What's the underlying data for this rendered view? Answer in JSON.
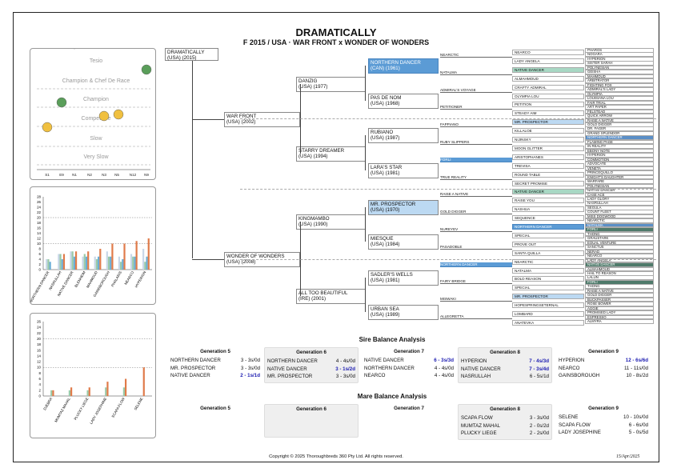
{
  "header": {
    "title": "DRAMATICALLY",
    "subtitle": "F 2015 / USA · WAR FRONT x WONDER OF WONDERS"
  },
  "tree": {
    "g1": {
      "name": "DRAMATICALLY",
      "sub": "(USA) (2015)"
    },
    "g2": [
      {
        "name": "WAR FRONT",
        "sub": "(USA) (2002)"
      },
      {
        "name": "WONDER OF WONDERS",
        "sub": "(USA) (2008)"
      }
    ],
    "g3": [
      {
        "name": "DANZIG",
        "sub": "(USA) (1977)"
      },
      {
        "name": "STARRY DREAMER",
        "sub": "(USA) (1994)"
      },
      {
        "name": "KINGMAMBO",
        "sub": "(USA) (1990)"
      },
      {
        "name": "ALL TOO BEAUTIFUL",
        "sub": "(IRE) (2001)"
      }
    ],
    "g4": [
      {
        "name": "NORTHERN DANCER",
        "sub": "(CAN) (1961)",
        "hl": "blue"
      },
      {
        "name": "PAS DE NOM",
        "sub": "(USA) (1968)"
      },
      {
        "name": "RUBIANO",
        "sub": "(USA) (1987)"
      },
      {
        "name": "LARA'S STAR",
        "sub": "(USA) (1981)"
      },
      {
        "name": "MR. PROSPECTOR",
        "sub": "(USA) (1970)",
        "hl": "lblue"
      },
      {
        "name": "MIESQUE",
        "sub": "(USA) (1984)"
      },
      {
        "name": "SADLER'S WELLS",
        "sub": "(USA) (1981)"
      },
      {
        "name": "URBAN SEA",
        "sub": "(USA) (1989)"
      }
    ],
    "g5": [
      {
        "name": "NEARCTIC"
      },
      {
        "name": "NATALMA"
      },
      {
        "name": "ADMIRAL'S VOYAGE"
      },
      {
        "name": "PETITIONER"
      },
      {
        "name": "FAPPIANO"
      },
      {
        "name": "RUBY SLIPPERS"
      },
      {
        "name": "FORLI",
        "hl": "blue"
      },
      {
        "name": "TRUE REALITY"
      },
      {
        "name": "RAISE A NATIVE"
      },
      {
        "name": "GOLD DIGGER"
      },
      {
        "name": "NUREYEV"
      },
      {
        "name": "PASADOBLE"
      },
      {
        "name": "NORTHERN DANCER",
        "hl": "blue"
      },
      {
        "name": "FAIRY BRIDGE"
      },
      {
        "name": "MISWAKI"
      },
      {
        "name": "ALLEGRETTA"
      }
    ],
    "g6": [
      {
        "name": "NEARCO"
      },
      {
        "name": "LADY ANGELA"
      },
      {
        "name": "NATIVE DANCER",
        "hl": "green"
      },
      {
        "name": "ALMAHMOUD"
      },
      {
        "name": "CRAFTY ADMIRAL"
      },
      {
        "name": "OLYMPIA LOU"
      },
      {
        "name": "PETITION"
      },
      {
        "name": "STEADY AIM"
      },
      {
        "name": "MR. PROSPECTOR",
        "hl": "lblue"
      },
      {
        "name": "KILLALOE"
      },
      {
        "name": "NIJINSKY"
      },
      {
        "name": "MOON GLITTER"
      },
      {
        "name": "ARISTOPHANES"
      },
      {
        "name": "TREVISA"
      },
      {
        "name": "ROUND TABLE"
      },
      {
        "name": "SECRET PROMISE"
      },
      {
        "name": "NATIVE DANCER",
        "hl": "green"
      },
      {
        "name": "RAISE YOU"
      },
      {
        "name": "NASHUA"
      },
      {
        "name": "SEQUENCE"
      },
      {
        "name": "NORTHERN DANCER",
        "hl": "blue"
      },
      {
        "name": "SPECIAL"
      },
      {
        "name": "PROVE OUT"
      },
      {
        "name": "SANTA QUILLA"
      },
      {
        "name": "NEARCTIC"
      },
      {
        "name": "NATALMA"
      },
      {
        "name": "BOLD REASON"
      },
      {
        "name": "SPECIAL"
      },
      {
        "name": "MR. PROSPECTOR",
        "hl": "lblue"
      },
      {
        "name": "HOPESPRINGSETERNAL"
      },
      {
        "name": "LOMBARD"
      },
      {
        "name": "ANATEVKA"
      }
    ],
    "g7": [
      "PHAROS",
      "NOGARA",
      "HYPERION",
      "SISTER SARAH",
      "POLYNESIAN",
      "GEISHA",
      "MAHMOUD",
      "ARBITRATOR",
      "FIGHTING FOX",
      "ADMIRAL'S LADY",
      "OLYMPIA",
      "LOUISIANA LOU",
      "FAIR TRIAL",
      "ART PAPER",
      "FELSTEAD",
      "QUICK ARROW",
      "RAISE A NATIVE",
      "GOLD DIGGER",
      "DR. FAGER",
      "GRAND SPLENDOR",
      "NORTHERN DANCER",
      "FLAMING PAGE",
      "IN REALITY",
      "EBONY NOTE",
      "HYPERION",
      "COMMOTION",
      "ADVOCATE",
      "VENETA",
      "PRINCEQUILLO",
      "KNIGHT'S DAUGHTER",
      "WARFARE",
      "POLYNESIAN",
      "NATIVE DANCER",
      "CASE ACE",
      "LADY GLORY",
      "NASRULLAH",
      "SEGULA",
      "COUNT FLEET",
      "MISS DOGWOOD",
      "NEARCTIC",
      "NATALMA",
      "FORLI",
      "THONG",
      "GRAUSTARK",
      "EQUAL VENTURE",
      "SANCTUS",
      "NERAD",
      "NEARCO",
      "LADY ANGELA",
      "NATIVE DANCER",
      "ALMAHMOUD",
      "HAIL TO REASON",
      "LALUN",
      "FORLI",
      "THONG",
      "RAISE A NATIVE",
      "GOLD DIGGER",
      "BUCKPASSER",
      "ROSE BOWER",
      "AGGIE",
      "PROMISED LADY",
      "ESPRESSO",
      "ALMYRA"
    ],
    "g7_hl": {
      "20": "dblue",
      "40": "dblue",
      "41": "dgreen",
      "49": "dgreen",
      "53": "dgreen"
    }
  },
  "speed_panel": {
    "labels": [
      "Tesio",
      "Champion & Chef De Race",
      "Champion",
      "Competitive",
      "Slow",
      "Very Slow"
    ],
    "x_labels": [
      "S1",
      "E9",
      "N1",
      "N2",
      "N3",
      "N5",
      "N12",
      "N9"
    ]
  },
  "sire_chart": {
    "type": "bar",
    "categories": [
      "NORTHERN DANCER",
      "NASRULLAH",
      "NATIVE DANCER",
      "BLENHEIM",
      "MAHMOUD",
      "GAINSBOROUGH",
      "PHALARIS",
      "NEARCO",
      "HYPERION"
    ],
    "series": [
      {
        "values": [
          4,
          6,
          7,
          5,
          5,
          7,
          5,
          6,
          8
        ],
        "color": "#c8d7e8"
      },
      {
        "values": [
          4,
          6,
          7,
          6,
          4,
          5,
          3,
          5,
          3
        ],
        "color": "#9bcaa8"
      },
      {
        "values": [
          3,
          4,
          5,
          5,
          5,
          5,
          4,
          5,
          5
        ],
        "color": "#6aaed6"
      },
      {
        "values": [
          0,
          6,
          7,
          7,
          8,
          10,
          10,
          11,
          12
        ],
        "color": "#e07b4a"
      }
    ],
    "y_ticks": [
      "0",
      "2",
      "4",
      "6",
      "8",
      "10",
      "12",
      "14",
      "16",
      "18",
      "20",
      "22",
      "24",
      "26",
      "28"
    ],
    "ylim": [
      0,
      28
    ]
  },
  "mare_chart": {
    "type": "bar",
    "categories": [
      "DJEBRA",
      "MUMTAZ MAHAL",
      "PLUCKY LIEGE",
      "LADY JOSEPHINE",
      "SCAPA FLOW",
      "SELENE"
    ],
    "series": [
      {
        "values": [
          2,
          2,
          2,
          3,
          3,
          0
        ],
        "color": "#9bcaa8"
      },
      {
        "values": [
          2,
          3,
          3,
          5,
          6,
          10
        ],
        "color": "#e07b4a"
      }
    ],
    "y_ticks": [
      "0",
      "2",
      "4",
      "6",
      "8",
      "10",
      "12",
      "14",
      "16",
      "18",
      "20",
      "22",
      "24",
      "26"
    ],
    "ylim": [
      0,
      26
    ]
  },
  "sire_balance": {
    "title": "Sire Balance Analysis",
    "gens": [
      {
        "label": "Generation 5",
        "rows": [
          [
            "NORTHERN DANCER",
            "3 - 3s/0d",
            false
          ],
          [
            "MR. PROSPECTOR",
            "3 - 3s/0d",
            false
          ],
          [
            "NATIVE DANCER",
            "2 - 1s/1d",
            true
          ]
        ]
      },
      {
        "label": "Generation 6",
        "rows": [
          [
            "NORTHERN DANCER",
            "4 - 4s/0d",
            false
          ],
          [
            "NATIVE DANCER",
            "3 - 1s/2d",
            true
          ],
          [
            "MR. PROSPECTOR",
            "3 - 3s/0d",
            false
          ]
        ]
      },
      {
        "label": "Generation 7",
        "rows": [
          [
            "NATIVE DANCER",
            "6 - 3s/3d",
            true
          ],
          [
            "NORTHERN DANCER",
            "4 - 4s/0d",
            false
          ],
          [
            "NEARCO",
            "4 - 4s/0d",
            false
          ]
        ]
      },
      {
        "label": "Generation 8",
        "rows": [
          [
            "HYPERION",
            "7 - 4s/3d",
            true
          ],
          [
            "NATIVE DANCER",
            "7 - 3s/4d",
            true
          ],
          [
            "NASRULLAH",
            "6 - 5s/1d",
            false
          ]
        ]
      },
      {
        "label": "Generation 9",
        "rows": [
          [
            "HYPERION",
            "12 - 6s/6d",
            true
          ],
          [
            "NEARCO",
            "11 - 11s/0d",
            false
          ],
          [
            "GAINSBOROUGH",
            "10 - 8s/2d",
            false
          ]
        ]
      }
    ]
  },
  "mare_balance": {
    "title": "Mare Balance Analysis",
    "gens": [
      {
        "label": "Generation 5",
        "rows": []
      },
      {
        "label": "Generation 6",
        "rows": []
      },
      {
        "label": "Generation 7",
        "rows": []
      },
      {
        "label": "Generation 8",
        "rows": [
          [
            "SCAPA FLOW",
            "3 - 3s/0d",
            false
          ],
          [
            "MUMTAZ MAHAL",
            "2 - 0s/2d",
            false
          ],
          [
            "PLUCKY LIEGE",
            "2 - 2s/0d",
            false
          ]
        ]
      },
      {
        "label": "Generation 9",
        "rows": [
          [
            "SELENE",
            "10 - 10s/0d",
            false
          ],
          [
            "SCAPA FLOW",
            "6 - 6s/0d",
            false
          ],
          [
            "LADY JOSEPHINE",
            "5 - 0s/5d",
            false
          ]
        ]
      }
    ]
  },
  "footer": {
    "copyright": "Copyright © 2025 Thoroughbreds 360 Pty Ltd. All rights reserved.",
    "date": "15/Apr/2025"
  }
}
